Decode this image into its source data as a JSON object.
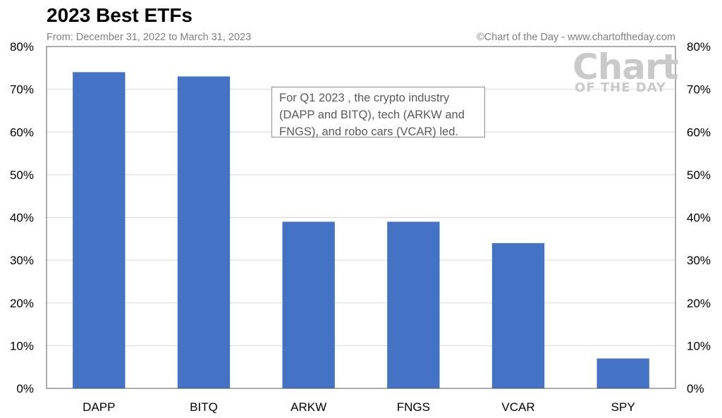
{
  "header": {
    "title": "2023 Best ETFs",
    "subtitle": "From: December 31, 2022 to March 31, 2023",
    "credit": "©Chart of the Day - www.chartoftheday.com"
  },
  "watermark": {
    "line1": "Chart",
    "line2": "OF THE DAY"
  },
  "annotation": {
    "text": "For Q1 2023 , the crypto industry (DAPP and BITQ), tech (ARKW and FNGS), and robo cars (VCAR) led."
  },
  "chart_data": {
    "type": "bar",
    "title": "2023 Best ETFs",
    "subtitle": "From: December 31, 2022 to March 31, 2023",
    "categories": [
      "DAPP",
      "BITQ",
      "ARKW",
      "FNGS",
      "VCAR",
      "SPY"
    ],
    "values": [
      74,
      73,
      39,
      39,
      34,
      7
    ],
    "xlabel": "",
    "ylabel": "",
    "ylim": [
      0,
      80
    ],
    "yticks": [
      "0%",
      "10%",
      "20%",
      "30%",
      "40%",
      "50%",
      "60%",
      "70%",
      "80%"
    ],
    "dual_y_axis": true,
    "grid": true,
    "legend": "none",
    "bar_color": "#4472c4"
  }
}
